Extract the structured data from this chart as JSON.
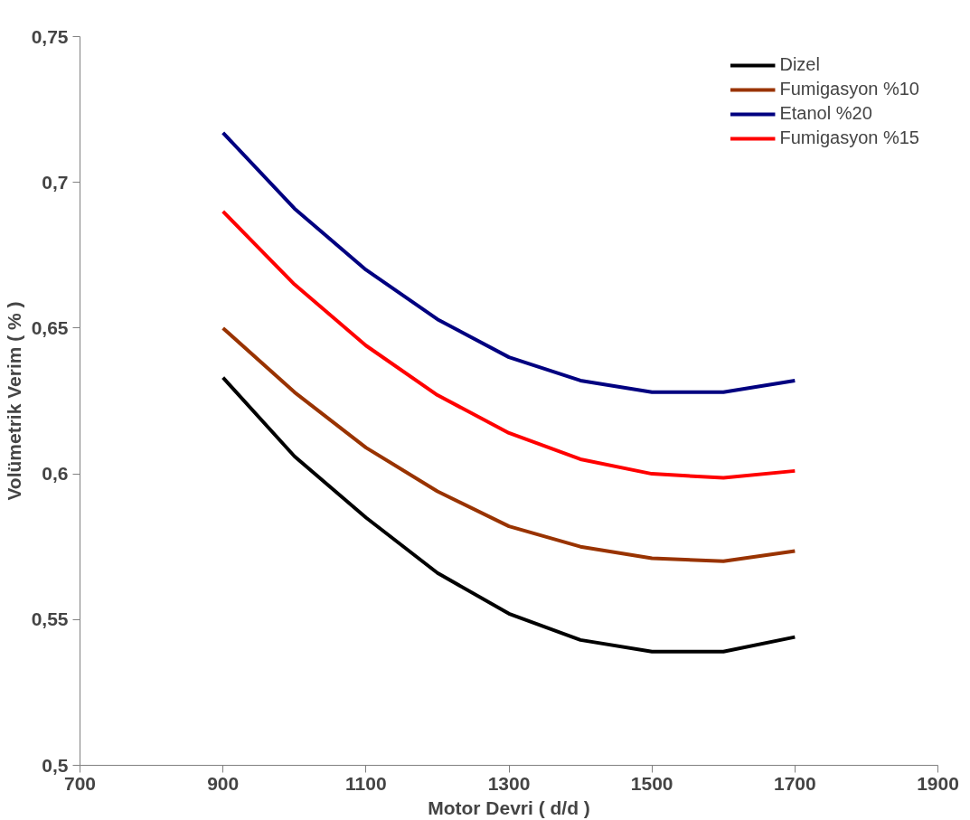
{
  "chart_data": {
    "type": "line",
    "xlabel": "Motor Devri ( d/d )",
    "ylabel": "Volümetrik Verim ( % )",
    "x": [
      900,
      1000,
      1100,
      1200,
      1300,
      1400,
      1500,
      1600,
      1700
    ],
    "xlim": [
      700,
      1900
    ],
    "xticks": [
      700,
      900,
      1100,
      1300,
      1500,
      1700,
      1900
    ],
    "ylim": [
      0.5,
      0.75
    ],
    "yticks": [
      {
        "value": 0.5,
        "label": "0,5"
      },
      {
        "value": 0.55,
        "label": "0,55"
      },
      {
        "value": 0.6,
        "label": "0,6"
      },
      {
        "value": 0.65,
        "label": "0,65"
      },
      {
        "value": 0.7,
        "label": "0,7"
      },
      {
        "value": 0.75,
        "label": "0,75"
      }
    ],
    "grid": false,
    "legend": "top right",
    "marker": "none",
    "line_style": "solid",
    "series": [
      {
        "name": "Dizel",
        "color": "#000000",
        "values": [
          0.633,
          0.606,
          0.585,
          0.566,
          0.552,
          0.543,
          0.539,
          0.539,
          0.544
        ]
      },
      {
        "name": "Fumigasyon %10",
        "color": "#993300",
        "values": [
          0.65,
          0.628,
          0.609,
          0.594,
          0.582,
          0.575,
          0.571,
          0.57,
          0.5735
        ]
      },
      {
        "name": "Etanol %20",
        "color": "#000080",
        "values": [
          0.717,
          0.691,
          0.67,
          0.653,
          0.64,
          0.632,
          0.628,
          0.628,
          0.632
        ]
      },
      {
        "name": "Fumigasyon %15",
        "color": "#ff0000",
        "values": [
          0.69,
          0.665,
          0.644,
          0.627,
          0.614,
          0.605,
          0.6,
          0.5986,
          0.601
        ]
      }
    ]
  }
}
